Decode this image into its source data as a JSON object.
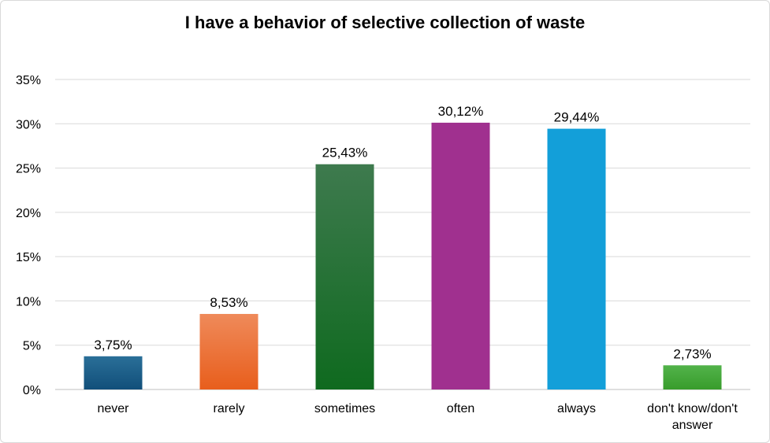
{
  "chart_data": {
    "type": "bar",
    "title": "I have a behavior of selective collection of waste",
    "categories": [
      "never",
      "rarely",
      "sometimes",
      "often",
      "always",
      "don't know/don't answer"
    ],
    "category_lines": [
      [
        "never"
      ],
      [
        "rarely"
      ],
      [
        "sometimes"
      ],
      [
        "often"
      ],
      [
        "always"
      ],
      [
        "don't know/don't",
        "answer"
      ]
    ],
    "values": [
      3.75,
      8.53,
      25.43,
      30.12,
      29.44,
      2.73
    ],
    "data_labels": [
      "3,75%",
      "8,53%",
      "25,43%",
      "30,12%",
      "29,44%",
      "2,73%"
    ],
    "ylim": [
      0,
      35
    ],
    "yticks": [
      0,
      5,
      10,
      15,
      20,
      25,
      30,
      35
    ],
    "ytick_labels": [
      "0%",
      "5%",
      "10%",
      "15%",
      "20%",
      "25%",
      "30%",
      "35%"
    ],
    "xlabel": "",
    "ylabel": "",
    "grid": true,
    "legend": "none",
    "bar_colors": [
      [
        "#2a6f98",
        "#114f7a"
      ],
      [
        "#ef8a5a",
        "#e85e1c"
      ],
      [
        "#3e7a4e",
        "#0f6a1f"
      ],
      [
        "#a0308f",
        "#a0308f"
      ],
      [
        "#139fd9",
        "#139fd9"
      ],
      [
        "#52b34a",
        "#389c2c"
      ]
    ]
  }
}
